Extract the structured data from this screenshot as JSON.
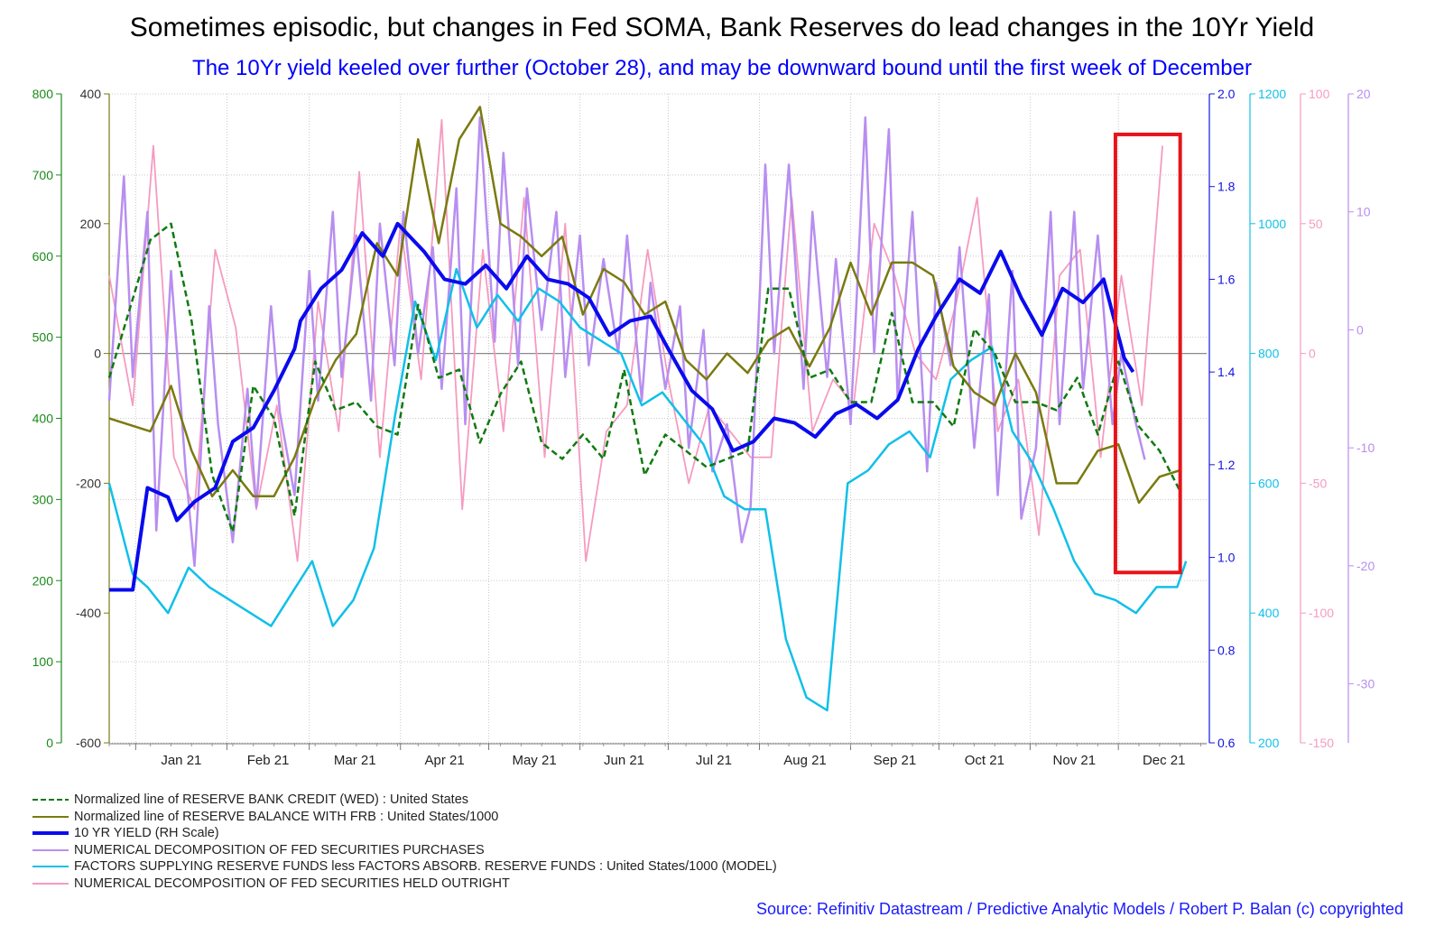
{
  "title": "Sometimes episodic, but changes in Fed SOMA, Bank Reserves do lead changes in the 10Yr Yield",
  "subtitle": "The 10Yr yield keeled over further (October 28), and may be downward bound until the first week of December",
  "source": "Source: Refinitiv Datastream / Predictive Analytic Models / Robert P. Balan (c) copyrighted",
  "chart_data": {
    "type": "line",
    "x_labels": [
      "Jan 21",
      "Feb 21",
      "Mar 21",
      "Apr 21",
      "May 21",
      "Jun 21",
      "Jul 21",
      "Aug 21",
      "Sep 21",
      "Oct 21",
      "Nov 21",
      "Dec 21"
    ],
    "x_range": [
      "2020-12-23",
      "2021-12-31"
    ],
    "grid": true,
    "highlight_box": {
      "x_start": "2021-11-30",
      "x_end": "2021-12-22",
      "y_axis": "reserve_credit",
      "y_top": 750,
      "y_bottom": 210,
      "color": "#e8141a"
    },
    "axes": {
      "reserve_credit": {
        "side": "left",
        "color": "#1a8a1a",
        "range": [
          0,
          800
        ],
        "ticks": [
          "0",
          "100",
          "200",
          "300",
          "400",
          "500",
          "600",
          "700",
          "800"
        ]
      },
      "reserve_balance": {
        "side": "left",
        "color": "#7a7a10",
        "range": [
          -600,
          400
        ],
        "ticks": [
          "-600",
          "-400",
          "-200",
          "0",
          "200",
          "400"
        ]
      },
      "yield": {
        "side": "right",
        "color": "#1515e0",
        "range": [
          0.6,
          2.0
        ],
        "ticks": [
          "0.6",
          "0.8",
          "1.0",
          "1.2",
          "1.4",
          "1.6",
          "1.8",
          "2.0"
        ]
      },
      "factors": {
        "side": "right",
        "color": "#10c0e8",
        "range": [
          200,
          1200
        ],
        "ticks": [
          "200",
          "400",
          "600",
          "800",
          "1000",
          "1200"
        ]
      },
      "held_outright": {
        "side": "right",
        "color": "#f59bc0",
        "range": [
          -150,
          100
        ],
        "ticks": [
          "-150",
          "-100",
          "-50",
          "0",
          "50",
          "100"
        ]
      },
      "purchases": {
        "side": "right",
        "color": "#b88ef0",
        "range": [
          -35,
          20
        ],
        "ticks": [
          "-30",
          "-20",
          "-10",
          "0",
          "10",
          "20"
        ]
      }
    },
    "series": [
      {
        "key": "reserve_credit",
        "name": "Normalized line of RESERVE BANK CREDIT (WED) : United States",
        "color": "#0f7a0f",
        "style": "dashed",
        "width": 2.5,
        "axis": "reserve_credit",
        "x": [
          "2020-12-23",
          "2021-01-06",
          "2021-01-13",
          "2021-01-20",
          "2021-01-27",
          "2021-02-03",
          "2021-02-10",
          "2021-02-17",
          "2021-02-24",
          "2021-03-03",
          "2021-03-10",
          "2021-03-17",
          "2021-03-24",
          "2021-03-31",
          "2021-04-07",
          "2021-04-14",
          "2021-04-21",
          "2021-04-28",
          "2021-05-05",
          "2021-05-12",
          "2021-05-19",
          "2021-05-26",
          "2021-06-02",
          "2021-06-09",
          "2021-06-16",
          "2021-06-23",
          "2021-06-30",
          "2021-07-07",
          "2021-07-14",
          "2021-07-21",
          "2021-07-28",
          "2021-08-04",
          "2021-08-11",
          "2021-08-18",
          "2021-08-25",
          "2021-09-01",
          "2021-09-08",
          "2021-09-15",
          "2021-09-22",
          "2021-09-29",
          "2021-10-06",
          "2021-10-13",
          "2021-10-20",
          "2021-10-27",
          "2021-11-03",
          "2021-11-10",
          "2021-11-17",
          "2021-11-24",
          "2021-12-01",
          "2021-12-08",
          "2021-12-15",
          "2021-12-22"
        ],
        "y": [
          450,
          620,
          640,
          520,
          330,
          260,
          440,
          400,
          280,
          470,
          410,
          420,
          390,
          380,
          540,
          450,
          460,
          370,
          430,
          470,
          370,
          350,
          380,
          350,
          460,
          330,
          380,
          360,
          340,
          350,
          360,
          560,
          560,
          450,
          460,
          420,
          420,
          530,
          420,
          420,
          390,
          510,
          480,
          420,
          420,
          410,
          450,
          380,
          470,
          390,
          360,
          310
        ]
      },
      {
        "key": "reserve_balance",
        "name": "Normalized line of RESERVE BALANCE WITH FRB : United States/1000",
        "color": "#7a7a10",
        "style": "solid",
        "width": 2.5,
        "axis": "reserve_balance",
        "x": [
          "2020-12-23",
          "2021-01-06",
          "2021-01-13",
          "2021-01-20",
          "2021-01-27",
          "2021-02-03",
          "2021-02-10",
          "2021-02-17",
          "2021-02-24",
          "2021-03-03",
          "2021-03-10",
          "2021-03-17",
          "2021-03-24",
          "2021-03-31",
          "2021-04-07",
          "2021-04-14",
          "2021-04-21",
          "2021-04-28",
          "2021-05-05",
          "2021-05-12",
          "2021-05-19",
          "2021-05-26",
          "2021-06-02",
          "2021-06-09",
          "2021-06-16",
          "2021-06-23",
          "2021-06-30",
          "2021-07-07",
          "2021-07-14",
          "2021-07-21",
          "2021-07-28",
          "2021-08-04",
          "2021-08-11",
          "2021-08-18",
          "2021-08-25",
          "2021-09-01",
          "2021-09-08",
          "2021-09-15",
          "2021-09-22",
          "2021-09-29",
          "2021-10-06",
          "2021-10-13",
          "2021-10-20",
          "2021-10-27",
          "2021-11-03",
          "2021-11-10",
          "2021-11-17",
          "2021-11-24",
          "2021-12-01",
          "2021-12-08",
          "2021-12-15",
          "2021-12-22"
        ],
        "y": [
          -100,
          -120,
          -50,
          -150,
          -220,
          -180,
          -220,
          -220,
          -160,
          -70,
          -10,
          30,
          170,
          120,
          330,
          170,
          330,
          380,
          200,
          180,
          150,
          180,
          60,
          130,
          110,
          60,
          80,
          -10,
          -40,
          0,
          -30,
          20,
          40,
          -20,
          40,
          140,
          60,
          140,
          140,
          120,
          -20,
          -60,
          -80,
          0,
          -60,
          -200,
          -200,
          -150,
          -140,
          -230,
          -190,
          -180
        ]
      },
      {
        "key": "yield",
        "name": "10 YR YIELD (RH Scale)",
        "color": "#0a0aee",
        "style": "solid",
        "width": 4,
        "axis": "yield",
        "x": [
          "2020-12-23",
          "2020-12-31",
          "2021-01-05",
          "2021-01-12",
          "2021-01-15",
          "2021-01-21",
          "2021-01-28",
          "2021-02-03",
          "2021-02-10",
          "2021-02-17",
          "2021-02-24",
          "2021-02-26",
          "2021-03-05",
          "2021-03-12",
          "2021-03-19",
          "2021-03-26",
          "2021-03-31",
          "2021-04-09",
          "2021-04-16",
          "2021-04-23",
          "2021-04-30",
          "2021-05-07",
          "2021-05-14",
          "2021-05-21",
          "2021-05-28",
          "2021-06-04",
          "2021-06-11",
          "2021-06-18",
          "2021-06-25",
          "2021-07-01",
          "2021-07-09",
          "2021-07-16",
          "2021-07-23",
          "2021-07-30",
          "2021-08-06",
          "2021-08-13",
          "2021-08-20",
          "2021-08-27",
          "2021-09-03",
          "2021-09-10",
          "2021-09-17",
          "2021-09-24",
          "2021-09-30",
          "2021-10-08",
          "2021-10-15",
          "2021-10-22",
          "2021-10-29",
          "2021-11-05",
          "2021-11-12",
          "2021-11-19",
          "2021-11-26",
          "2021-12-03",
          "2021-12-06"
        ],
        "y": [
          0.93,
          0.93,
          1.15,
          1.13,
          1.08,
          1.12,
          1.15,
          1.25,
          1.28,
          1.36,
          1.45,
          1.51,
          1.58,
          1.62,
          1.7,
          1.65,
          1.72,
          1.66,
          1.6,
          1.59,
          1.63,
          1.58,
          1.65,
          1.6,
          1.59,
          1.56,
          1.48,
          1.51,
          1.52,
          1.45,
          1.36,
          1.32,
          1.23,
          1.25,
          1.3,
          1.29,
          1.26,
          1.31,
          1.33,
          1.3,
          1.34,
          1.45,
          1.52,
          1.6,
          1.57,
          1.66,
          1.56,
          1.48,
          1.58,
          1.55,
          1.6,
          1.43,
          1.4
        ]
      },
      {
        "key": "purchases",
        "name": "NUMERICAL DECOMPOSITION OF FED SECURITIES PURCHASES",
        "color": "#b88ef0",
        "style": "solid",
        "width": 2.5,
        "axis": "purchases",
        "x": [
          "2020-12-23",
          "2020-12-28",
          "2020-12-31",
          "2021-01-05",
          "2021-01-08",
          "2021-01-13",
          "2021-01-18",
          "2021-01-21",
          "2021-01-26",
          "2021-01-29",
          "2021-02-03",
          "2021-02-08",
          "2021-02-11",
          "2021-02-16",
          "2021-02-19",
          "2021-02-24",
          "2021-03-01",
          "2021-03-04",
          "2021-03-09",
          "2021-03-12",
          "2021-03-17",
          "2021-03-22",
          "2021-03-25",
          "2021-03-30",
          "2021-04-02",
          "2021-04-07",
          "2021-04-12",
          "2021-04-15",
          "2021-04-20",
          "2021-04-23",
          "2021-04-28",
          "2021-05-03",
          "2021-05-06",
          "2021-05-11",
          "2021-05-14",
          "2021-05-19",
          "2021-05-24",
          "2021-05-27",
          "2021-06-01",
          "2021-06-04",
          "2021-06-09",
          "2021-06-14",
          "2021-06-17",
          "2021-06-22",
          "2021-06-25",
          "2021-06-30",
          "2021-07-05",
          "2021-07-08",
          "2021-07-13",
          "2021-07-16",
          "2021-07-21",
          "2021-07-26",
          "2021-07-29",
          "2021-08-03",
          "2021-08-06",
          "2021-08-11",
          "2021-08-16",
          "2021-08-19",
          "2021-08-24",
          "2021-08-27",
          "2021-09-01",
          "2021-09-06",
          "2021-09-09",
          "2021-09-14",
          "2021-09-17",
          "2021-09-22",
          "2021-09-27",
          "2021-09-30",
          "2021-10-05",
          "2021-10-08",
          "2021-10-13",
          "2021-10-18",
          "2021-10-21",
          "2021-10-26",
          "2021-10-29",
          "2021-11-03",
          "2021-11-08",
          "2021-11-11",
          "2021-11-16",
          "2021-11-19",
          "2021-11-24",
          "2021-11-29",
          "2021-12-02",
          "2021-12-07",
          "2021-12-10"
        ],
        "y": [
          -6,
          13,
          -4,
          10,
          -17,
          5,
          -12,
          -20,
          2,
          -8,
          -18,
          -5,
          -15,
          2,
          -7,
          -14,
          5,
          -6,
          10,
          -4,
          8,
          -6,
          9,
          -3,
          10,
          -2,
          7,
          -5,
          12,
          -8,
          18,
          -1,
          15,
          -3,
          12,
          0,
          10,
          -4,
          8,
          -3,
          6,
          -2,
          8,
          -6,
          4,
          -5,
          2,
          -10,
          0,
          -12,
          -8,
          -18,
          -15,
          14,
          -2,
          14,
          -5,
          10,
          -4,
          6,
          -8,
          18,
          -2,
          17,
          -6,
          10,
          -12,
          4,
          -3,
          7,
          -10,
          3,
          -14,
          5,
          -16,
          -10,
          10,
          -8,
          10,
          -5,
          8,
          -8,
          -2,
          -8,
          -11
        ]
      },
      {
        "key": "factors",
        "name": "FACTORS SUPPLYING RESERVE FUNDS less FACTORS ABSORB. RESERVE FUNDS : United States/1000 (MODEL)",
        "color": "#10c0e8",
        "style": "solid",
        "width": 2.5,
        "axis": "factors",
        "x": [
          "2020-12-23",
          "2020-12-31",
          "2021-01-05",
          "2021-01-12",
          "2021-01-19",
          "2021-01-26",
          "2021-02-02",
          "2021-02-09",
          "2021-02-16",
          "2021-02-23",
          "2021-03-02",
          "2021-03-09",
          "2021-03-16",
          "2021-03-23",
          "2021-03-30",
          "2021-04-06",
          "2021-04-13",
          "2021-04-20",
          "2021-04-27",
          "2021-05-04",
          "2021-05-11",
          "2021-05-18",
          "2021-05-25",
          "2021-06-01",
          "2021-06-08",
          "2021-06-15",
          "2021-06-22",
          "2021-06-29",
          "2021-07-06",
          "2021-07-13",
          "2021-07-20",
          "2021-07-27",
          "2021-08-03",
          "2021-08-10",
          "2021-08-17",
          "2021-08-24",
          "2021-08-31",
          "2021-09-07",
          "2021-09-14",
          "2021-09-21",
          "2021-09-28",
          "2021-10-05",
          "2021-10-12",
          "2021-10-19",
          "2021-10-26",
          "2021-11-02",
          "2021-11-09",
          "2021-11-16",
          "2021-11-23",
          "2021-11-30",
          "2021-12-07",
          "2021-12-14",
          "2021-12-21",
          "2021-12-24"
        ],
        "y": [
          600,
          460,
          440,
          400,
          470,
          440,
          420,
          400,
          380,
          430,
          480,
          380,
          420,
          500,
          700,
          880,
          790,
          930,
          840,
          890,
          850,
          900,
          880,
          840,
          820,
          800,
          720,
          740,
          700,
          660,
          580,
          560,
          560,
          360,
          270,
          250,
          600,
          620,
          660,
          680,
          640,
          760,
          790,
          810,
          680,
          630,
          560,
          480,
          430,
          420,
          400,
          440,
          440,
          480
        ]
      },
      {
        "key": "held_outright",
        "name": "NUMERICAL DECOMPOSITION OF FED SECURITIES HELD OUTRIGHT",
        "color": "#f59bc0",
        "style": "solid",
        "width": 1.8,
        "axis": "held_outright",
        "x": [
          "2020-12-23",
          "2020-12-31",
          "2021-01-07",
          "2021-01-14",
          "2021-01-21",
          "2021-01-28",
          "2021-02-04",
          "2021-02-11",
          "2021-02-18",
          "2021-02-25",
          "2021-03-04",
          "2021-03-11",
          "2021-03-18",
          "2021-03-25",
          "2021-04-01",
          "2021-04-08",
          "2021-04-15",
          "2021-04-22",
          "2021-04-29",
          "2021-05-06",
          "2021-05-13",
          "2021-05-20",
          "2021-05-27",
          "2021-06-03",
          "2021-06-10",
          "2021-06-17",
          "2021-06-24",
          "2021-07-01",
          "2021-07-08",
          "2021-07-15",
          "2021-07-22",
          "2021-07-29",
          "2021-08-05",
          "2021-08-12",
          "2021-08-19",
          "2021-08-26",
          "2021-09-02",
          "2021-09-09",
          "2021-09-16",
          "2021-09-23",
          "2021-09-30",
          "2021-10-07",
          "2021-10-14",
          "2021-10-21",
          "2021-10-28",
          "2021-11-04",
          "2021-11-11",
          "2021-11-18",
          "2021-11-25",
          "2021-12-02",
          "2021-12-09",
          "2021-12-16"
        ],
        "y": [
          30,
          -20,
          80,
          -40,
          -60,
          40,
          10,
          -60,
          -20,
          -80,
          20,
          -30,
          70,
          -40,
          50,
          -10,
          90,
          -60,
          40,
          -30,
          60,
          -40,
          50,
          -80,
          -30,
          -20,
          40,
          -10,
          -50,
          -20,
          -30,
          -40,
          -40,
          60,
          -30,
          -10,
          -20,
          50,
          30,
          0,
          -10,
          20,
          60,
          -30,
          -10,
          -70,
          30,
          40,
          -40,
          30,
          -20,
          80
        ]
      }
    ]
  },
  "legend": [
    {
      "label": "Normalized line of RESERVE BANK CREDIT (WED) : United States",
      "color": "#0f7a0f",
      "style": "dashed"
    },
    {
      "label": "Normalized line of RESERVE BALANCE WITH FRB : United States/1000",
      "color": "#7a7a10",
      "style": "solid"
    },
    {
      "label": "10 YR YIELD (RH Scale)",
      "color": "#0a0aee",
      "style": "thick"
    },
    {
      "label": "NUMERICAL DECOMPOSITION OF FED SECURITIES PURCHASES",
      "color": "#b88ef0",
      "style": "solid"
    },
    {
      "label": "FACTORS SUPPLYING RESERVE FUNDS less FACTORS ABSORB. RESERVE FUNDS : United States/1000 (MODEL)",
      "color": "#10c0e8",
      "style": "solid"
    },
    {
      "label": "NUMERICAL DECOMPOSITION OF FED SECURITIES HELD OUTRIGHT",
      "color": "#f59bc0",
      "style": "solid"
    }
  ]
}
